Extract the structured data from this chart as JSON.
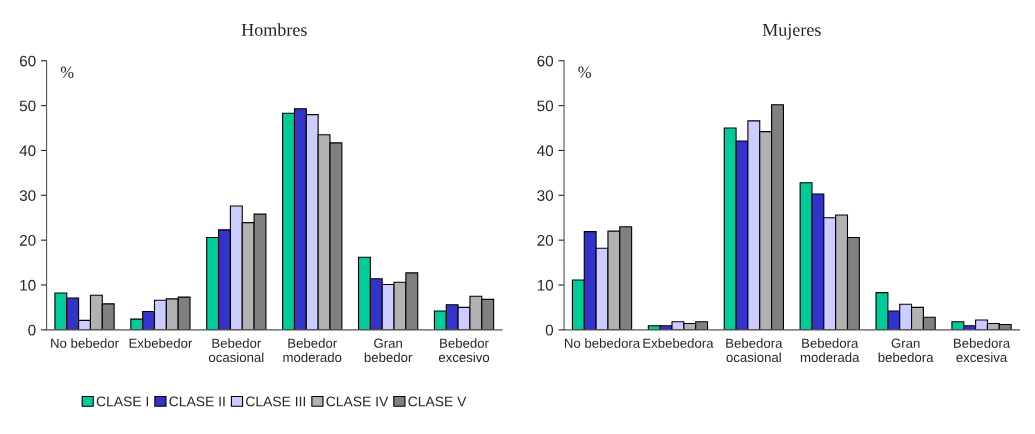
{
  "chart_data": [
    {
      "type": "bar",
      "title": "Hombres",
      "ylabel": "%",
      "categories": [
        "No bebedor",
        "Exbebedor",
        "Bebedor\nocasional",
        "Bebedor\nmoderado",
        "Gran\nbebedor",
        "Bebedor\nexcesivo"
      ],
      "ylim": [
        0,
        60
      ],
      "yticks": [
        0,
        10,
        20,
        30,
        40,
        50,
        60
      ],
      "grid": false,
      "legend": "bottom",
      "series": [
        {
          "name": "CLASE I",
          "color": "#00cc99",
          "values": [
            8.2,
            2.4,
            20.6,
            48.3,
            16.2,
            4.2
          ]
        },
        {
          "name": "CLASE II",
          "color": "#3333cc",
          "values": [
            7.1,
            4.1,
            22.3,
            49.3,
            11.4,
            5.6
          ]
        },
        {
          "name": "CLASE III",
          "color": "#ccccff",
          "values": [
            2.1,
            6.6,
            27.6,
            48.0,
            10.1,
            5.0
          ]
        },
        {
          "name": "CLASE IV",
          "color": "#b2b2b2",
          "values": [
            7.7,
            6.9,
            23.9,
            43.5,
            10.6,
            7.5
          ]
        },
        {
          "name": "CLASE V",
          "color": "#808080",
          "values": [
            5.8,
            7.3,
            25.8,
            41.7,
            12.7,
            6.8
          ]
        }
      ]
    },
    {
      "type": "bar",
      "title": "Mujeres",
      "ylabel": "%",
      "categories": [
        "No bebedora",
        "Exbebedora",
        "Bebedora\nocasional",
        "Bebedora\nmoderada",
        "Gran\nbebedora",
        "Bebedora\nexcesiva"
      ],
      "ylim": [
        0,
        60
      ],
      "yticks": [
        0,
        10,
        20,
        30,
        40,
        50,
        60
      ],
      "grid": false,
      "legend": false,
      "series": [
        {
          "color": "#00cc99",
          "values": [
            11.1,
            0.9,
            45.0,
            32.8,
            8.3,
            1.8
          ]
        },
        {
          "color": "#3333cc",
          "values": [
            21.9,
            0.9,
            42.1,
            30.3,
            4.2,
            0.9
          ]
        },
        {
          "color": "#ccccff",
          "values": [
            18.2,
            1.8,
            46.6,
            25.0,
            5.7,
            2.2
          ]
        },
        {
          "color": "#b2b2b2",
          "values": [
            22.0,
            1.4,
            44.2,
            25.6,
            5.0,
            1.4
          ]
        },
        {
          "color": "#808080",
          "values": [
            23.0,
            1.8,
            50.2,
            20.6,
            2.8,
            1.2
          ]
        }
      ]
    }
  ]
}
